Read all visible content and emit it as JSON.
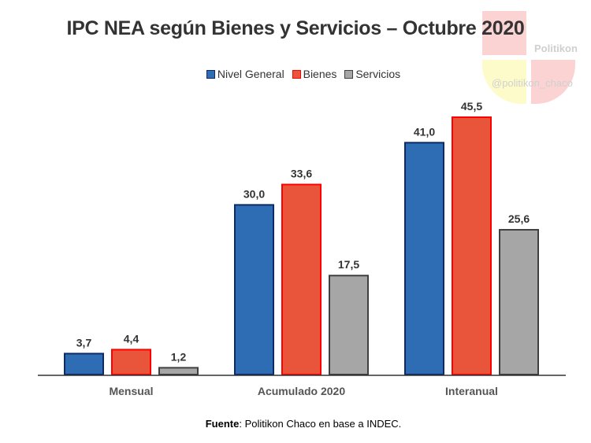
{
  "chart_data": {
    "type": "bar",
    "title": "IPC NEA según Bienes y Servicios – Octubre 2020",
    "categories": [
      "Mensual",
      "Acumulado 2020",
      "Interanual"
    ],
    "series": [
      {
        "name": "Nivel General",
        "values": [
          3.7,
          30.0,
          41.0
        ],
        "labels": [
          "3,7",
          "30,0",
          "41,0"
        ],
        "color": "#2E6DB4",
        "border": "#0D2A66"
      },
      {
        "name": "Bienes",
        "values": [
          4.4,
          33.6,
          45.5
        ],
        "labels": [
          "4,4",
          "33,6",
          "45,5"
        ],
        "color": "#E8553A",
        "border": "#FF0000"
      },
      {
        "name": "Servicios",
        "values": [
          1.2,
          17.5,
          25.6
        ],
        "labels": [
          "1,2",
          "17,5",
          "25,6"
        ],
        "color": "#A6A6A6",
        "border": "#404040"
      }
    ],
    "ylim": [
      0,
      47
    ],
    "grid": false,
    "legend": "top"
  },
  "source": {
    "label": "Fuente",
    "text": ": Politikon Chaco en base a INDEC."
  },
  "watermark": {
    "name": "Politikon",
    "handle": "@politikon_chaco"
  }
}
